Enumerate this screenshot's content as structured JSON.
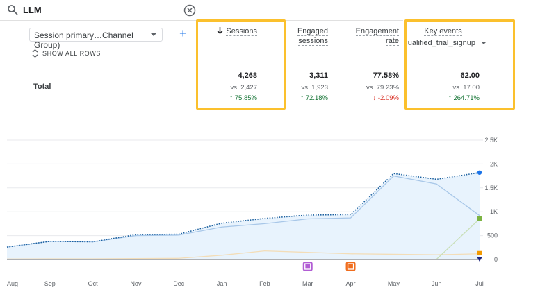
{
  "search": {
    "query": "LLM",
    "icon": "search-icon",
    "clear_icon": "clear-icon"
  },
  "dimension": {
    "selected": "Session primary…Channel Group)",
    "show_all_rows": "SHOW ALL ROWS"
  },
  "table": {
    "total_label": "Total",
    "columns": [
      {
        "header": "Sessions",
        "sort": "descending",
        "value": "4,268",
        "vs": "vs. 2,427",
        "change": "75.85%",
        "direction": "up"
      },
      {
        "header_line1": "Engaged",
        "header_line2": "sessions",
        "value": "3,311",
        "vs": "vs. 1,923",
        "change": "72.18%",
        "direction": "up"
      },
      {
        "header_line1": "Engagement",
        "header_line2": "rate",
        "value": "77.58%",
        "vs": "vs. 79.23%",
        "change": "-2.09%",
        "direction": "down"
      },
      {
        "header": "Key events",
        "event": "qualified_trial_signup",
        "value": "62.00",
        "vs": "vs. 17.00",
        "change": "264.71%",
        "direction": "up"
      }
    ]
  },
  "colors": {
    "highlight": "#fbc02d",
    "accent": "#1a73e8",
    "up": "#137333",
    "down": "#d93025"
  },
  "chart_data": {
    "type": "area",
    "x": [
      "Aug",
      "Sep",
      "Oct",
      "Nov",
      "Dec",
      "Jan",
      "Feb",
      "Mar",
      "Apr",
      "May",
      "Jun",
      "Jul"
    ],
    "ylim": [
      0,
      2500
    ],
    "yticks": [
      "0",
      "500",
      "1K",
      "1.5K",
      "2K",
      "2.5K"
    ],
    "ytick_values": [
      0,
      500,
      1000,
      1500,
      2000,
      2500
    ],
    "series": [
      {
        "values": [
          260,
          380,
          370,
          520,
          530,
          760,
          860,
          930,
          940,
          1800,
          1680,
          1820
        ]
      },
      {
        "values": [
          260,
          380,
          370,
          500,
          510,
          680,
          750,
          850,
          870,
          1750,
          1580,
          920
        ]
      },
      {
        "values": [
          10,
          15,
          15,
          20,
          25,
          90,
          180,
          150,
          120,
          110,
          100,
          120
        ]
      },
      {
        "values": [
          5,
          5,
          5,
          5,
          5,
          5,
          5,
          5,
          5,
          5,
          5,
          850
        ]
      }
    ],
    "grid": true,
    "annotations": [
      {
        "x": "Mar",
        "icon": "note-icon"
      },
      {
        "x": "Apr",
        "icon": "note-icon"
      }
    ]
  }
}
